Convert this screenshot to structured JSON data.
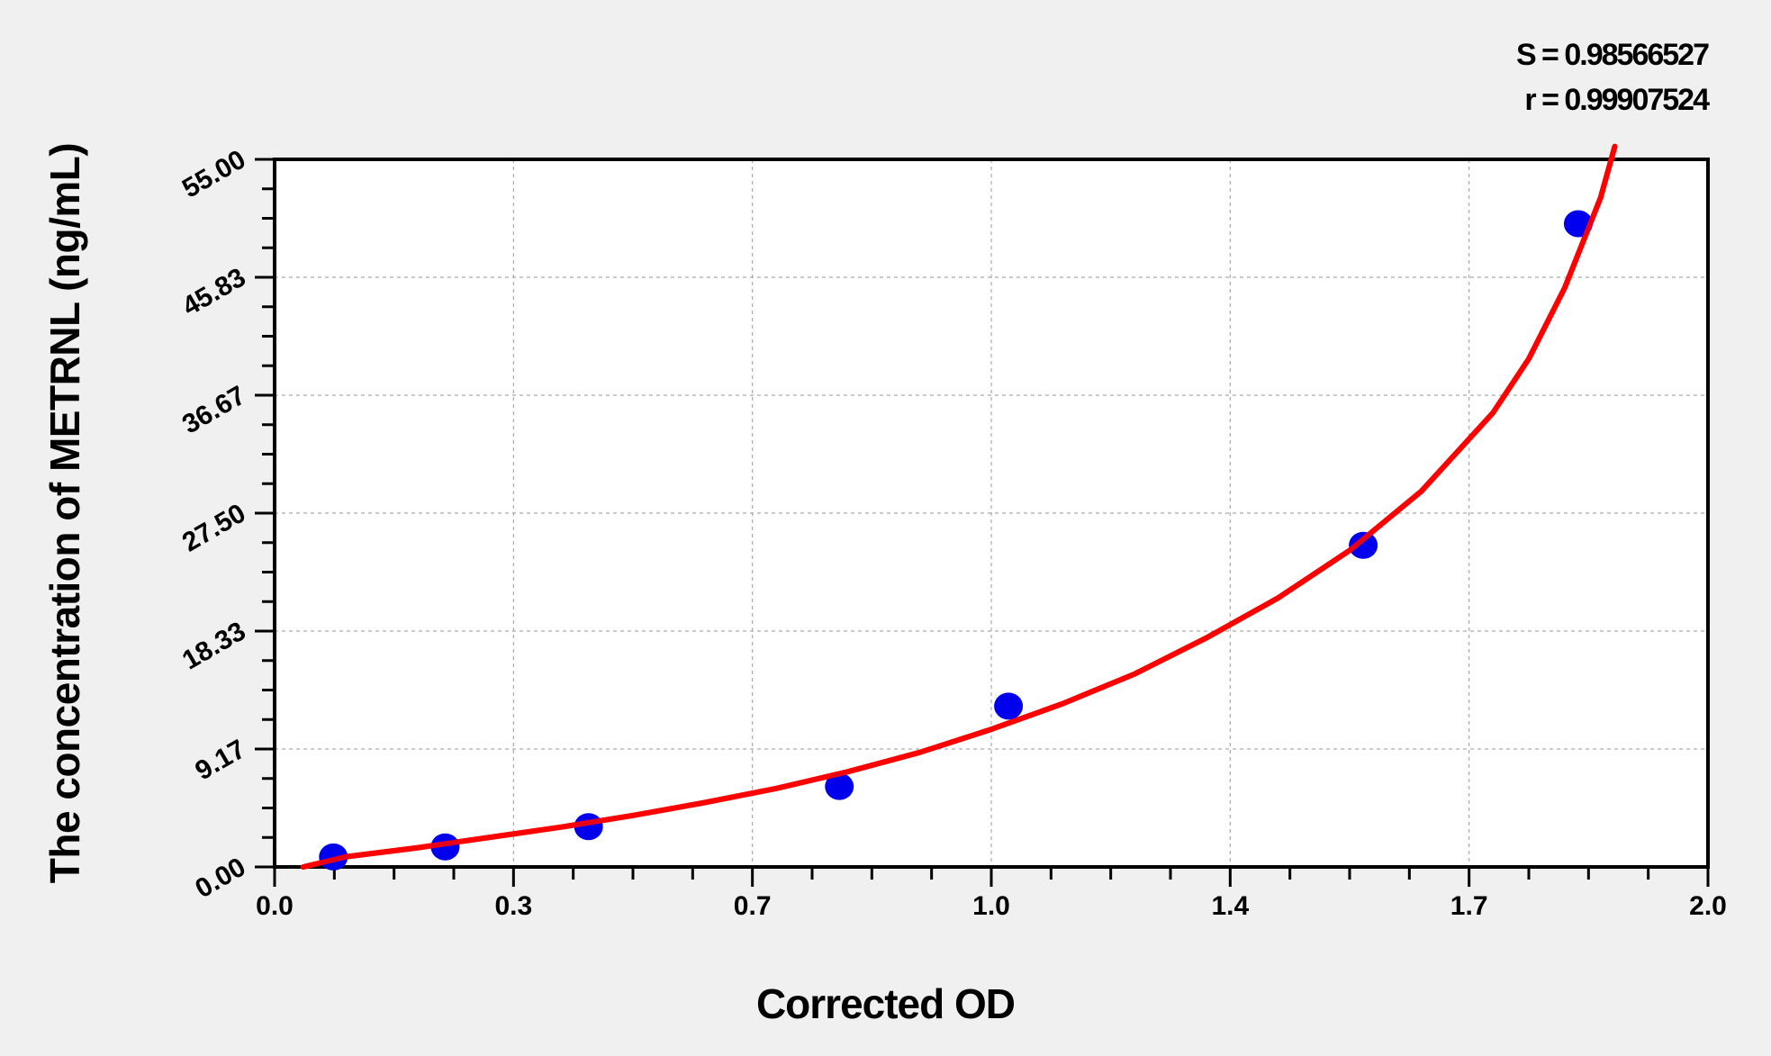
{
  "chart_data": {
    "type": "scatter",
    "title": "",
    "xlabel": "Corrected OD",
    "ylabel": "The concentration of METRNL (ng/mL)",
    "xlim": [
      0,
      2.0
    ],
    "ylim": [
      0,
      55
    ],
    "x_ticks": [
      "0.0",
      "0.3",
      "0.7",
      "1.0",
      "1.4",
      "1.7",
      "2.0"
    ],
    "y_ticks": [
      "0.00",
      "9.17",
      "18.33",
      "27.50",
      "36.67",
      "45.83",
      "55.00"
    ],
    "grid": true,
    "stats": {
      "S": "S = 0.98566527",
      "r": "r = 0.99907524"
    },
    "series": [
      {
        "type": "scatter",
        "color": "#0000ee",
        "x": [
          0.082,
          0.238,
          0.438,
          0.788,
          1.024,
          1.519,
          1.819
        ],
        "y": [
          0.78,
          1.56,
          3.13,
          6.25,
          12.5,
          25,
          50
        ]
      },
      {
        "type": "line",
        "color": "#ff0000",
        "x": [
          0.04,
          0.1,
          0.2,
          0.3,
          0.4,
          0.5,
          0.6,
          0.7,
          0.8,
          0.9,
          1.0,
          1.1,
          1.2,
          1.3,
          1.4,
          1.5,
          1.6,
          1.7,
          1.75,
          1.8,
          1.85,
          1.87
        ],
        "y": [
          0,
          0.8,
          1.5,
          2.3,
          3.1,
          4.0,
          5.0,
          6.1,
          7.4,
          8.9,
          10.7,
          12.7,
          15.0,
          17.8,
          20.9,
          24.6,
          29.2,
          35.3,
          39.5,
          45.0,
          52.0,
          56.0
        ]
      }
    ]
  }
}
